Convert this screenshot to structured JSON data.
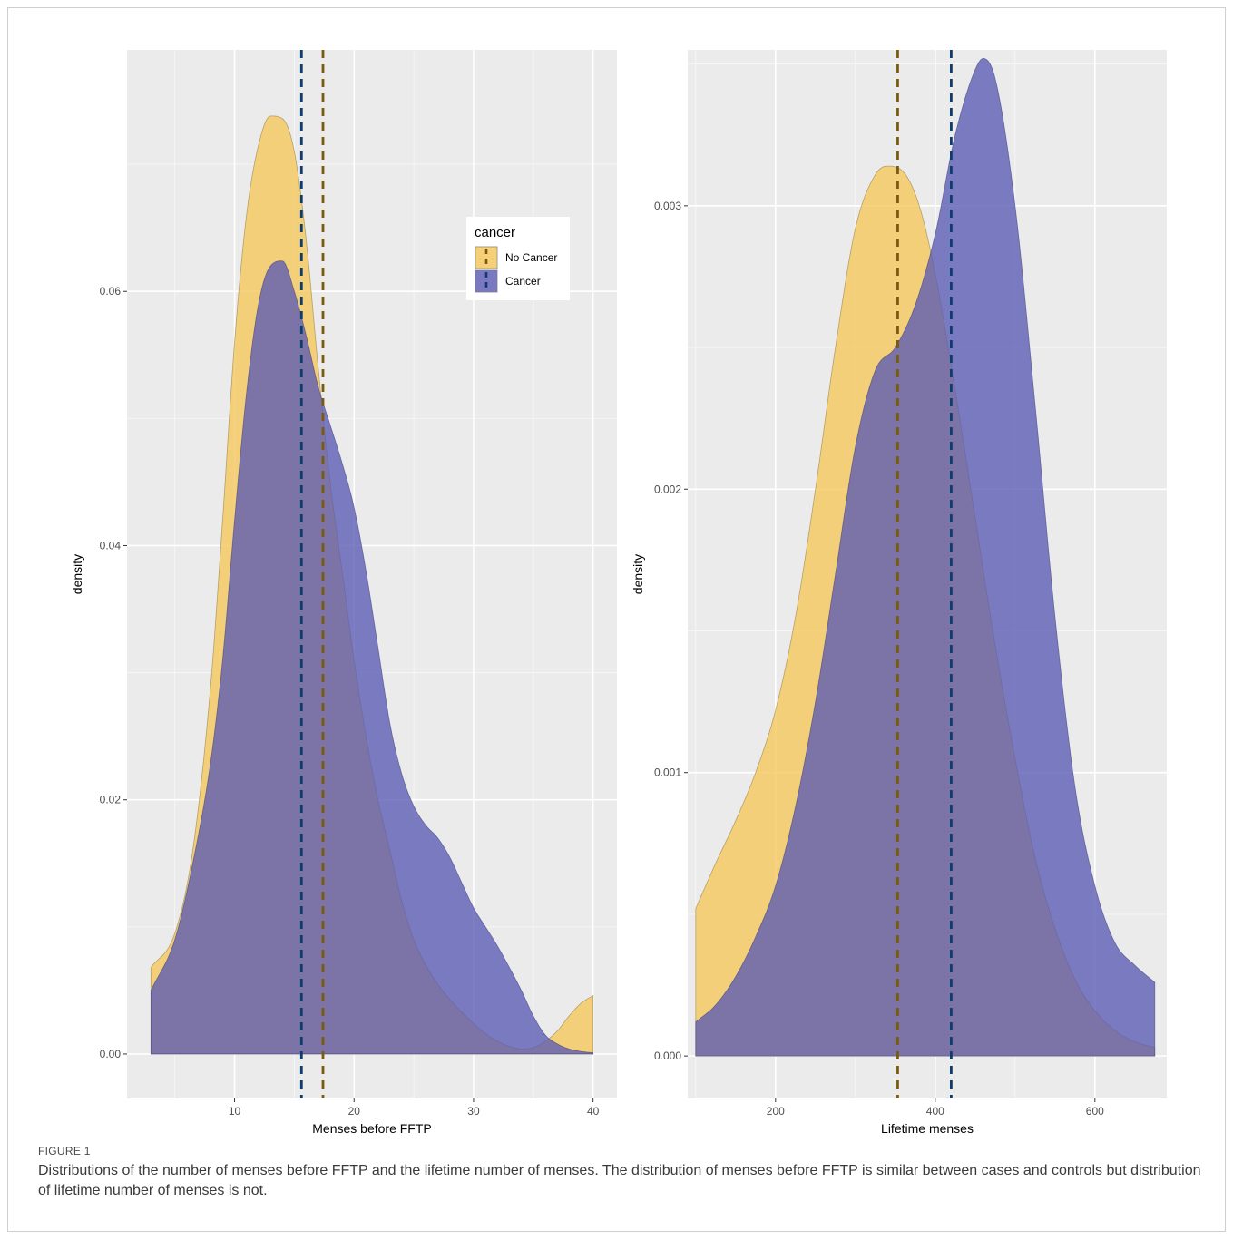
{
  "figure": {
    "label": "FIGURE 1",
    "caption": "Distributions of the number of menses before FFTP and the lifetime number of menses. The distribution of menses before FFTP is similar between cases and controls but distribution of lifetime number of menses is not."
  },
  "legend": {
    "title": "cancer",
    "items": [
      "No Cancer",
      "Cancer"
    ]
  },
  "colors": {
    "panel_bg": "#EBEBEB",
    "grid_major": "#FFFFFF",
    "no_cancer_fill": "#F5C75A",
    "cancer_fill": "#5A5AB4",
    "overlap": "#7A677C",
    "no_cancer_line": "#7A5A10",
    "cancer_line": "#0D3C6E",
    "axis_text": "#4D4D4D"
  },
  "chart_data": [
    {
      "type": "area",
      "xlabel": "Menses before FFTP",
      "ylabel": "density",
      "xlim": [
        1,
        42
      ],
      "ylim": [
        -0.0035,
        0.079
      ],
      "xticks": [
        10,
        20,
        30,
        40
      ],
      "yticks": [
        0.0,
        0.02,
        0.04,
        0.06
      ],
      "ytick_labels": [
        "0.00",
        "0.02",
        "0.04",
        "0.06"
      ],
      "grid": true,
      "legend_position": "top-right",
      "series": [
        {
          "name": "No Cancer",
          "x": [
            3,
            5,
            6.5,
            8,
            9,
            10,
            11,
            12,
            13,
            14,
            15,
            16,
            17,
            18,
            19,
            20,
            21,
            22,
            23,
            24,
            25,
            26,
            27,
            28,
            29,
            30,
            31,
            32,
            33,
            34,
            35,
            36,
            37,
            38,
            39,
            40
          ],
          "y": [
            0.0068,
            0.0095,
            0.016,
            0.029,
            0.042,
            0.056,
            0.066,
            0.0715,
            0.0738,
            0.0736,
            0.071,
            0.064,
            0.054,
            0.045,
            0.038,
            0.031,
            0.025,
            0.02,
            0.016,
            0.012,
            0.009,
            0.007,
            0.0055,
            0.0043,
            0.0033,
            0.0024,
            0.0016,
            0.001,
            0.0006,
            0.0004,
            0.0005,
            0.001,
            0.0018,
            0.003,
            0.004,
            0.0046
          ],
          "mean": 17.4
        },
        {
          "name": "Cancer",
          "x": [
            3,
            5,
            6.5,
            8,
            9,
            10,
            11,
            12,
            13,
            14,
            15,
            16,
            17,
            18,
            19,
            20,
            21,
            22,
            23,
            24,
            25,
            26,
            27,
            28,
            29,
            30,
            31,
            32,
            33,
            34,
            35,
            36,
            37,
            38,
            39,
            40
          ],
          "y": [
            0.005,
            0.009,
            0.015,
            0.023,
            0.031,
            0.042,
            0.052,
            0.059,
            0.062,
            0.0624,
            0.06,
            0.0565,
            0.0525,
            0.0495,
            0.0465,
            0.043,
            0.038,
            0.032,
            0.026,
            0.022,
            0.0195,
            0.018,
            0.017,
            0.0155,
            0.0135,
            0.0115,
            0.01,
            0.0085,
            0.0068,
            0.005,
            0.003,
            0.0015,
            0.0008,
            0.0004,
            0.0002,
            0.0001
          ],
          "mean": 15.6
        }
      ]
    },
    {
      "type": "area",
      "xlabel": "Lifetime menses",
      "ylabel": "density",
      "xlim": [
        90,
        690
      ],
      "ylim": [
        -0.00015,
        0.00355
      ],
      "xticks": [
        200,
        400,
        600
      ],
      "yticks": [
        0.0,
        0.001,
        0.002,
        0.003
      ],
      "ytick_labels": [
        "0.000",
        "0.001",
        "0.002",
        "0.003"
      ],
      "grid": true,
      "series": [
        {
          "name": "No Cancer",
          "x": [
            100,
            125,
            150,
            175,
            200,
            225,
            250,
            275,
            300,
            325,
            340,
            360,
            380,
            400,
            425,
            450,
            475,
            500,
            525,
            550,
            575,
            600,
            625,
            650,
            675
          ],
          "y": [
            0.00052,
            0.00068,
            0.00083,
            0.001,
            0.00122,
            0.00155,
            0.002,
            0.0025,
            0.00292,
            0.00311,
            0.00314,
            0.00312,
            0.003,
            0.00276,
            0.00235,
            0.0019,
            0.00145,
            0.00105,
            0.0007,
            0.00045,
            0.00027,
            0.00016,
            9e-05,
            5e-05,
            3e-05
          ],
          "mean": 353
        },
        {
          "name": "Cancer",
          "x": [
            100,
            125,
            150,
            175,
            200,
            225,
            250,
            275,
            300,
            325,
            350,
            375,
            400,
            425,
            450,
            460,
            475,
            500,
            525,
            550,
            575,
            600,
            625,
            650,
            675
          ],
          "y": [
            0.00012,
            0.00018,
            0.00028,
            0.00042,
            0.0006,
            0.00088,
            0.00125,
            0.0017,
            0.00215,
            0.00242,
            0.0025,
            0.00265,
            0.0029,
            0.00325,
            0.00348,
            0.00352,
            0.00345,
            0.003,
            0.0023,
            0.00155,
            0.00095,
            0.0006,
            0.0004,
            0.00032,
            0.00026
          ],
          "mean": 420
        }
      ]
    }
  ]
}
